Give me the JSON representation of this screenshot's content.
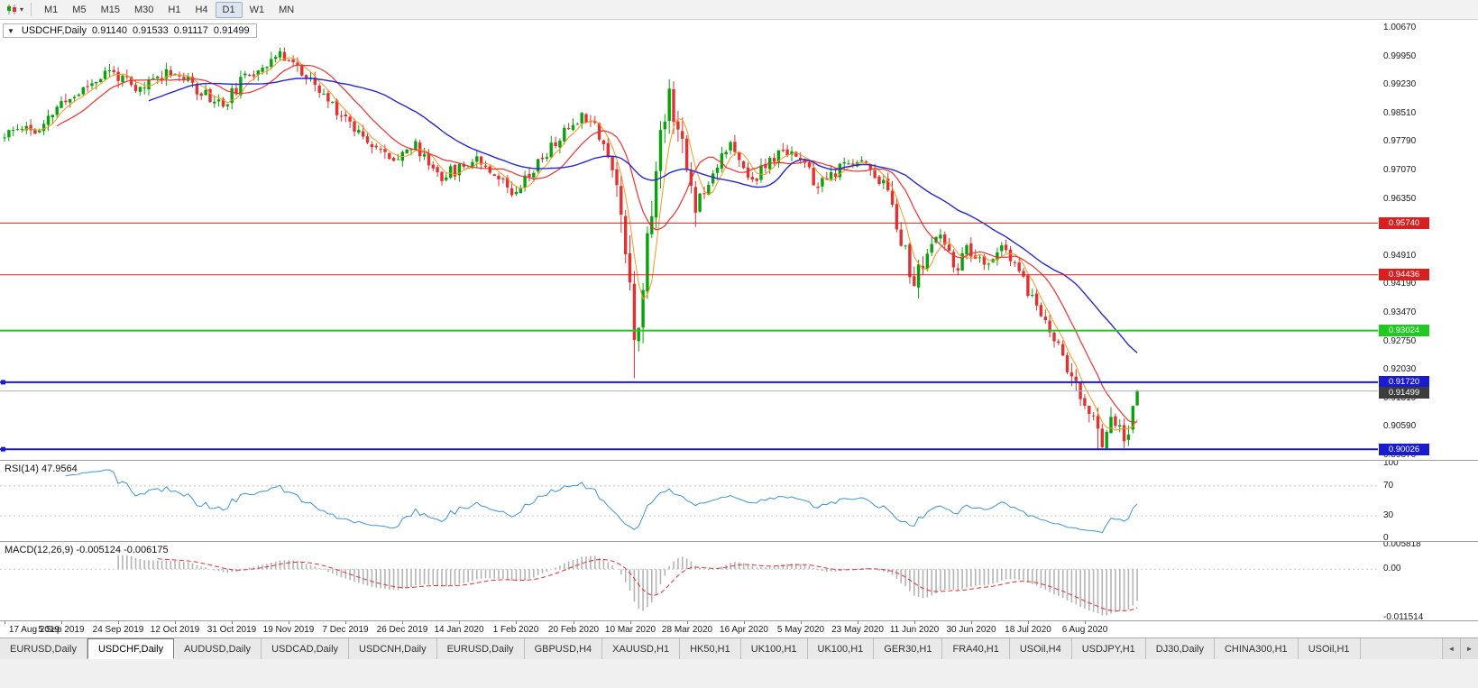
{
  "toolbar": {
    "timeframes": [
      "M1",
      "M5",
      "M15",
      "M30",
      "H1",
      "H4",
      "D1",
      "W1",
      "MN"
    ],
    "active_timeframe": "D1"
  },
  "icons": {
    "collapse_triangle": "▼",
    "dropdown_caret": "▾",
    "tab_scroll_left": "◄",
    "tab_scroll_right": "►"
  },
  "chart": {
    "header": {
      "symbol": "USDCHF,Daily",
      "open": "0.91140",
      "high": "0.91533",
      "low": "0.91117",
      "close": "0.91499"
    },
    "y_axis_labels": [
      "1.00670",
      "0.99950",
      "0.99230",
      "0.98510",
      "0.97790",
      "0.97070",
      "0.96350",
      "0.95630",
      "0.94910",
      "0.94190",
      "0.93470",
      "0.92750",
      "0.92030",
      "0.91310",
      "0.90590",
      "0.89870"
    ],
    "x_axis_labels": [
      "17 Aug 2019",
      "5 Sep 2019",
      "24 Sep 2019",
      "12 Oct 2019",
      "31 Oct 2019",
      "19 Nov 2019",
      "7 Dec 2019",
      "26 Dec 2019",
      "14 Jan 2020",
      "1 Feb 2020",
      "20 Feb 2020",
      "10 Mar 2020",
      "28 Mar 2020",
      "16 Apr 2020",
      "5 May 2020",
      "23 May 2020",
      "11 Jun 2020",
      "30 Jun 2020",
      "18 Jul 2020",
      "6 Aug 2020"
    ]
  },
  "rsi": {
    "label": "RSI(14) 47.9564",
    "value": 47.9564,
    "axis_labels": [
      "100",
      "70",
      "30",
      "0"
    ]
  },
  "macd": {
    "label": "MACD(12,26,9) -0.005124 -0.006175",
    "main": -0.005124,
    "signal": -0.006175,
    "axis_labels": [
      "0.005818",
      "0.00",
      "-0.011514"
    ]
  },
  "tabs": {
    "active_index": 1,
    "items": [
      "EURUSD,Daily",
      "USDCHF,Daily",
      "AUDUSD,Daily",
      "USDCAD,Daily",
      "USDCNH,Daily",
      "EURUSD,Daily",
      "GBPUSD,H4",
      "XAUUSD,H1",
      "HK50,H1",
      "UK100,H1",
      "UK100,H1",
      "GER30,H1",
      "FRA40,H1",
      "USOil,H4",
      "USDJPY,H1",
      "DJ30,Daily",
      "CHINA300,H1",
      "USOil,H1"
    ]
  },
  "chart_data": {
    "type": "candlestick",
    "symbol": "USDCHF",
    "period": "Daily",
    "candle_count": 260,
    "x_label_step": 13,
    "last_candle": {
      "open": 0.9114,
      "high": 0.91533,
      "low": 0.91117,
      "close": 0.91499
    },
    "price_scale": {
      "top": 1.00875,
      "bottom": 0.89758
    },
    "seed": 11,
    "anchors": [
      [
        0,
        0.979
      ],
      [
        4,
        0.9822
      ],
      [
        8,
        0.98
      ],
      [
        12,
        0.9868
      ],
      [
        16,
        0.9895
      ],
      [
        20,
        0.993
      ],
      [
        24,
        0.9958
      ],
      [
        27,
        0.994
      ],
      [
        30,
        0.9902
      ],
      [
        34,
        0.9938
      ],
      [
        38,
        0.9962
      ],
      [
        42,
        0.993
      ],
      [
        46,
        0.99
      ],
      [
        50,
        0.9872
      ],
      [
        54,
        0.9928
      ],
      [
        58,
        0.9968
      ],
      [
        62,
        0.9992
      ],
      [
        65,
        0.9998
      ],
      [
        68,
        0.9952
      ],
      [
        72,
        0.9905
      ],
      [
        76,
        0.9862
      ],
      [
        80,
        0.9818
      ],
      [
        84,
        0.978
      ],
      [
        88,
        0.9732
      ],
      [
        91,
        0.9758
      ],
      [
        94,
        0.9768
      ],
      [
        97,
        0.9726
      ],
      [
        100,
        0.9694
      ],
      [
        104,
        0.9712
      ],
      [
        108,
        0.9742
      ],
      [
        112,
        0.9702
      ],
      [
        116,
        0.9655
      ],
      [
        120,
        0.97
      ],
      [
        124,
        0.9752
      ],
      [
        128,
        0.9802
      ],
      [
        131,
        0.984
      ],
      [
        134,
        0.9846
      ],
      [
        137,
        0.9776
      ],
      [
        139,
        0.9706
      ],
      [
        141,
        0.96
      ],
      [
        143,
        0.944
      ],
      [
        144,
        0.929
      ],
      [
        145,
        0.933
      ],
      [
        146,
        0.943
      ],
      [
        147,
        0.952
      ],
      [
        148,
        0.961
      ],
      [
        149,
        0.97
      ],
      [
        150,
        0.979
      ],
      [
        151,
        0.986
      ],
      [
        152,
        0.9905
      ],
      [
        153,
        0.987
      ],
      [
        154,
        0.982
      ],
      [
        155,
        0.976
      ],
      [
        156,
        0.9705
      ],
      [
        158,
        0.9625
      ],
      [
        160,
        0.9662
      ],
      [
        162,
        0.97
      ],
      [
        164,
        0.9755
      ],
      [
        166,
        0.977
      ],
      [
        168,
        0.9722
      ],
      [
        171,
        0.9682
      ],
      [
        174,
        0.9718
      ],
      [
        177,
        0.9745
      ],
      [
        180,
        0.9762
      ],
      [
        183,
        0.9718
      ],
      [
        186,
        0.9662
      ],
      [
        189,
        0.9695
      ],
      [
        192,
        0.9715
      ],
      [
        195,
        0.9738
      ],
      [
        198,
        0.9712
      ],
      [
        201,
        0.9672
      ],
      [
        203,
        0.9625
      ],
      [
        205,
        0.954
      ],
      [
        207,
        0.9455
      ],
      [
        208,
        0.9418
      ],
      [
        210,
        0.9472
      ],
      [
        212,
        0.952
      ],
      [
        214,
        0.9538
      ],
      [
        216,
        0.949
      ],
      [
        218,
        0.9462
      ],
      [
        220,
        0.9505
      ],
      [
        222,
        0.9482
      ],
      [
        224,
        0.9462
      ],
      [
        226,
        0.9492
      ],
      [
        228,
        0.9508
      ],
      [
        230,
        0.9478
      ],
      [
        232,
        0.9455
      ],
      [
        234,
        0.9402
      ],
      [
        236,
        0.9365
      ],
      [
        238,
        0.933
      ],
      [
        240,
        0.9282
      ],
      [
        242,
        0.924
      ],
      [
        244,
        0.918
      ],
      [
        246,
        0.913
      ],
      [
        248,
        0.9092
      ],
      [
        250,
        0.904
      ],
      [
        251,
        0.9028
      ],
      [
        252,
        0.9065
      ],
      [
        253,
        0.909
      ],
      [
        254,
        0.9072
      ],
      [
        255,
        0.9045
      ],
      [
        256,
        0.903
      ],
      [
        257,
        0.9052
      ],
      [
        258,
        0.9112
      ],
      [
        259,
        0.91499
      ]
    ],
    "forced_candles": [
      {
        "index": 144,
        "low": 0.9182
      },
      {
        "index": 250,
        "low": 0.90026
      },
      {
        "index": 256,
        "low": 0.9006
      },
      {
        "index": 258,
        "open": 0.9052,
        "close": 0.9112
      },
      {
        "index": 259,
        "open": 0.9114,
        "high": 0.91533,
        "low": 0.91117,
        "close": 0.91499
      }
    ],
    "colors": {
      "bull": "#0aa20a",
      "bear": "#e03232"
    },
    "moving_averages": [
      {
        "name": "fast",
        "period": 5,
        "color": "#ff9518",
        "width": 1
      },
      {
        "name": "medium",
        "period": 13,
        "color": "#f03030",
        "width": 1.2
      },
      {
        "name": "slow",
        "period": 34,
        "color": "#2626d4",
        "width": 1.4
      }
    ],
    "horizontal_lines": [
      {
        "price": 0.9574,
        "label": "0.95740",
        "color": "#d82020",
        "width": 1,
        "handles": false
      },
      {
        "price": 0.94436,
        "label": "0.94436",
        "color": "#d82020",
        "width": 1,
        "handles": false
      },
      {
        "price": 0.93024,
        "label": "0.93024",
        "color": "#1ecb1e",
        "width": 2,
        "handles": false
      },
      {
        "price": 0.9172,
        "label": "0.91720",
        "color": "#1a1ad0",
        "width": 2,
        "handles": true
      },
      {
        "price": 0.90026,
        "label": "0.90026",
        "color": "#1a1ad0",
        "width": 2,
        "handles": true
      }
    ],
    "current_price": {
      "value": 0.91499,
      "label": "0.91499",
      "line_color": "#b0b0b0",
      "tag_color": "#3c3c3c"
    },
    "indicators": {
      "rsi": {
        "period": 14,
        "color": "#3f93d8",
        "levels": [
          70,
          30
        ],
        "scale": [
          0,
          100
        ]
      },
      "macd": {
        "fast": 12,
        "slow": 26,
        "signal": 9,
        "hist_color": "#b4b4b4",
        "signal_color": "#e03232",
        "scale_min": -0.011514,
        "scale_max": 0.005818
      }
    }
  }
}
